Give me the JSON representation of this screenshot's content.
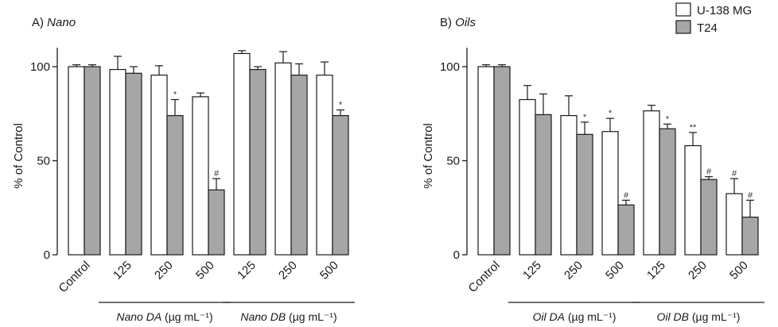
{
  "colors": {
    "u138": "#ffffff",
    "t24": "#a6a6a6",
    "stroke": "#1a1a1a"
  },
  "legend": [
    {
      "name": "U-138 MG",
      "color": "#ffffff"
    },
    {
      "name": "T24",
      "color": "#a6a6a6"
    }
  ],
  "chart_data": [
    {
      "type": "bar",
      "panel": "A)",
      "title": "Nano",
      "ylabel": "% of Control",
      "ylim": [
        0,
        110
      ],
      "yticks": [
        0,
        50,
        100
      ],
      "categories": [
        "Control",
        "125",
        "250",
        "500",
        "125",
        "250",
        "500"
      ],
      "groups": [
        {
          "label_italic": "Nano DA",
          "label_units": " (µg mL⁻¹)",
          "categories": [
            1,
            3
          ]
        },
        {
          "label_italic": "Nano DB",
          "label_units": " (µg mL⁻¹)",
          "categories": [
            4,
            6
          ]
        }
      ],
      "series": [
        {
          "name": "U-138 MG",
          "values": [
            100,
            98.5,
            95.5,
            84,
            107,
            102,
            95.5
          ],
          "errors": [
            1,
            7,
            5,
            2,
            1.5,
            6,
            7
          ],
          "marks": [
            "",
            "",
            "",
            "",
            "",
            "",
            ""
          ]
        },
        {
          "name": "T24",
          "values": [
            100,
            96.5,
            74,
            34.5,
            98.5,
            95.5,
            74
          ],
          "errors": [
            1,
            3.5,
            8.5,
            6,
            1.5,
            6,
            3
          ],
          "marks": [
            "",
            "",
            "*",
            "#",
            "",
            "",
            "*"
          ]
        }
      ]
    },
    {
      "type": "bar",
      "panel": "B)",
      "title": "Oils",
      "ylabel": "% of Control",
      "ylim": [
        0,
        110
      ],
      "yticks": [
        0,
        50,
        100
      ],
      "categories": [
        "Control",
        "125",
        "250",
        "500",
        "125",
        "250",
        "500"
      ],
      "groups": [
        {
          "label_italic": "Oil DA",
          "label_units": " (µg mL⁻¹)",
          "categories": [
            1,
            3
          ]
        },
        {
          "label_italic": "Oil DB",
          "label_units": " (µg mL⁻¹)",
          "categories": [
            4,
            6
          ]
        }
      ],
      "series": [
        {
          "name": "U-138 MG",
          "values": [
            100,
            82.5,
            74,
            65.5,
            76.5,
            58,
            32.5
          ],
          "errors": [
            1,
            7.5,
            10.5,
            7,
            3,
            7,
            8
          ],
          "marks": [
            "",
            "",
            "",
            "*",
            "",
            "**",
            "#"
          ]
        },
        {
          "name": "T24",
          "values": [
            100,
            74.5,
            64,
            26.5,
            67,
            40,
            20
          ],
          "errors": [
            1,
            11,
            6.5,
            2.5,
            2.5,
            1.5,
            9
          ],
          "marks": [
            "",
            "",
            "*",
            "#",
            "*",
            "#",
            "#"
          ]
        }
      ]
    }
  ]
}
